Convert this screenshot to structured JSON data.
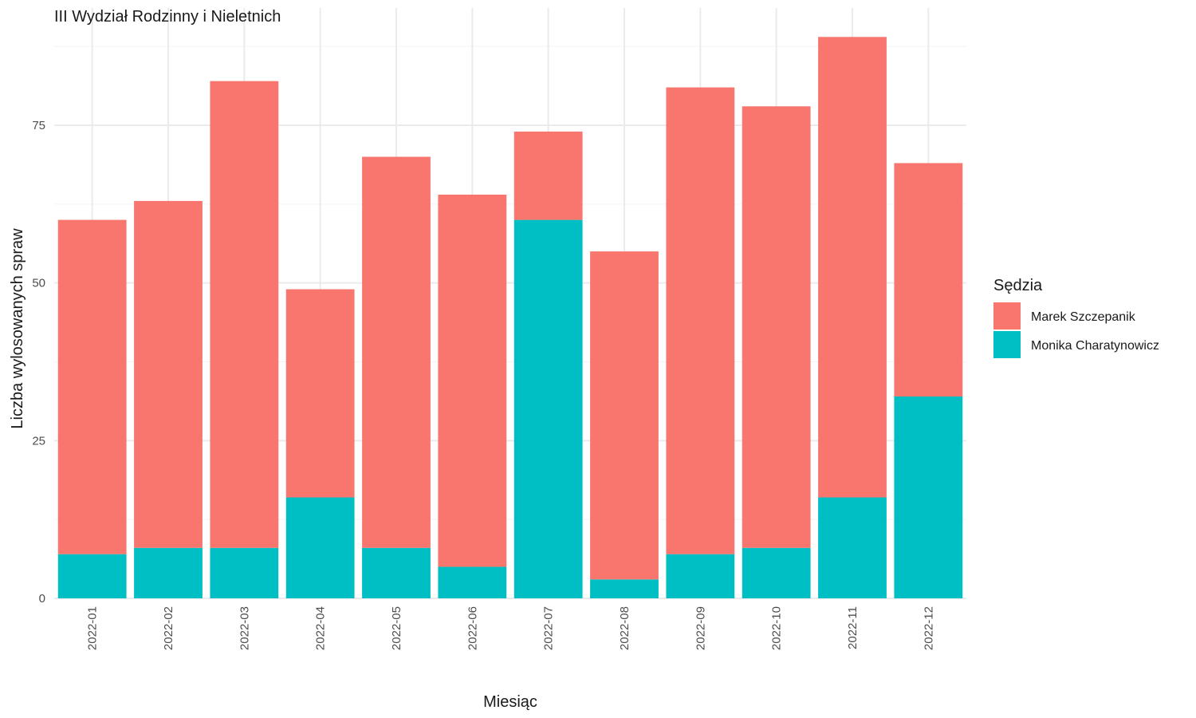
{
  "chart_data": {
    "type": "bar",
    "stacked": true,
    "title": "III Wydział Rodzinny i Nieletnich",
    "xlabel": "Miesiąc",
    "ylabel": "Liczba wylosowanych spraw",
    "categories": [
      "2022-01",
      "2022-02",
      "2022-03",
      "2022-04",
      "2022-05",
      "2022-06",
      "2022-07",
      "2022-08",
      "2022-09",
      "2022-10",
      "2022-11",
      "2022-12"
    ],
    "series": [
      {
        "name": "Monika Charatynowicz",
        "color": "#00BFC4",
        "values": [
          7,
          8,
          8,
          16,
          8,
          5,
          60,
          3,
          7,
          8,
          16,
          32
        ]
      },
      {
        "name": "Marek Szczepanik",
        "color": "#F8766D",
        "values": [
          53,
          55,
          74,
          33,
          62,
          59,
          14,
          52,
          74,
          70,
          73,
          37
        ]
      }
    ],
    "ylim": [
      0,
      93
    ],
    "yticks": [
      0,
      25,
      50,
      75
    ],
    "grid": true,
    "legend": {
      "title": "Sędzia",
      "placement": "right",
      "entries": [
        "Marek Szczepanik",
        "Monika Charatynowicz"
      ]
    }
  }
}
